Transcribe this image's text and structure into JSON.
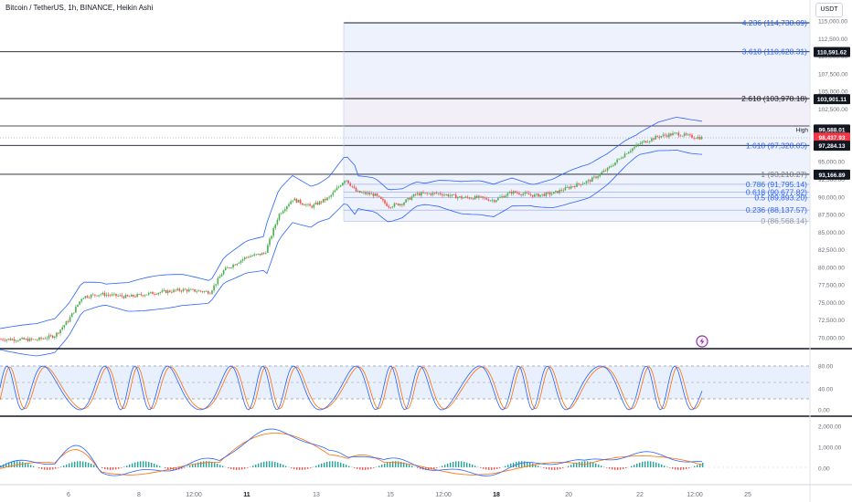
{
  "header": {
    "title": "Bitcoin / TetherUS, 1h, BINANCE, Heikin Ashi",
    "currency": "USDT"
  },
  "price_axis": {
    "ticks": [
      "115,000.00",
      "112,500.00",
      "110,000.00",
      "107,500.00",
      "105,000.00",
      "102,500.00",
      "100,000.00",
      "97,500.00",
      "95,000.00",
      "92,500.00",
      "90,000.00",
      "87,500.00",
      "85,000.00",
      "82,500.00",
      "80,000.00",
      "77,500.00",
      "75,000.00",
      "72,500.00",
      "70,000.00"
    ],
    "badges": [
      {
        "text": "110,591.62",
        "value": 110591.62,
        "color": "#131722"
      },
      {
        "text": "103,901.11",
        "value": 103901.11,
        "color": "#131722"
      },
      {
        "text": "99,588.01",
        "value": 99588.01,
        "color": "#131722"
      },
      {
        "text": "98,437.93",
        "value": 98437.93,
        "color": "#f23645"
      },
      {
        "text": "97,284.13",
        "value": 97284.13,
        "color": "#131722"
      },
      {
        "text": "93,166.89",
        "value": 93166.89,
        "color": "#131722"
      }
    ],
    "high_label": "High"
  },
  "fib_levels": [
    {
      "label": "4.236 (114,738.09)",
      "value": 114738.09,
      "color": "#2962ff"
    },
    {
      "label": "3.618 (110,628.31)",
      "value": 110628.31,
      "color": "#2962ff"
    },
    {
      "label": "2.618 (103,978.18)",
      "value": 103978.18,
      "color": "#131722"
    },
    {
      "label": "1.618 (97,328.05)",
      "value": 97328.05,
      "color": "#2962ff"
    },
    {
      "label": "1 (93,218.27)",
      "value": 93218.27,
      "color": "#787b86"
    },
    {
      "label": "0.786 (91,795.14)",
      "value": 91795.14,
      "color": "#2962ff"
    },
    {
      "label": "0.618 (90,677.82)",
      "value": 90677.82,
      "color": "#2962ff"
    },
    {
      "label": "0.5 (89,893.20)",
      "value": 89893.2,
      "color": "#2962ff"
    },
    {
      "label": "0.236 (88,137.57)",
      "value": 88137.57,
      "color": "#2962ff"
    },
    {
      "label": "0 (86,568.14)",
      "value": 86568.14,
      "color": "#9598a1"
    }
  ],
  "stoch_axis": {
    "ticks": [
      "80.00",
      "40.00",
      "0.00"
    ]
  },
  "macd_axis": {
    "ticks": [
      "2,000.00",
      "1,000.00",
      "0.00"
    ]
  },
  "time_axis": {
    "ticks": [
      {
        "label": "6",
        "bold": false
      },
      {
        "label": "8",
        "bold": false
      },
      {
        "label": "12:00",
        "bold": false
      },
      {
        "label": "11",
        "bold": true
      },
      {
        "label": "13",
        "bold": false
      },
      {
        "label": "15",
        "bold": false
      },
      {
        "label": "12:00",
        "bold": false
      },
      {
        "label": "18",
        "bold": true
      },
      {
        "label": "20",
        "bold": false
      },
      {
        "label": "22",
        "bold": false
      },
      {
        "label": "12:00",
        "bold": false
      },
      {
        "label": "25",
        "bold": false
      }
    ]
  },
  "colors": {
    "bull": "#26a69a",
    "bull_green": "#4caf50",
    "bear": "#ef5350",
    "band": "#2962ff",
    "stoch_k": "#2962ff",
    "stoch_d": "#ff6d00",
    "fib_zone": "#e3ecff"
  },
  "icons": {
    "lightning": "lightning-icon"
  }
}
